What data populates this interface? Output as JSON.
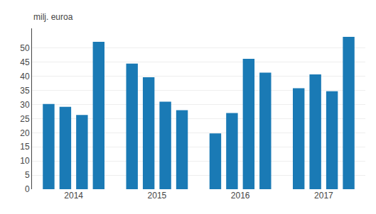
{
  "chart_data": {
    "type": "bar",
    "ylabel": "milj. euroa",
    "categories": [
      "2014",
      "2015",
      "2016",
      "2017"
    ],
    "series": [
      {
        "color": "#1a7ab5",
        "values": [
          30.2,
          44.5,
          19.8,
          35.8
        ]
      },
      {
        "color": "#1a7ab5",
        "values": [
          29.2,
          39.7,
          27.0,
          40.7
        ]
      },
      {
        "color": "#1a7ab5",
        "values": [
          26.3,
          31.0,
          46.2,
          34.7
        ]
      },
      {
        "color": "#1a7ab5",
        "values": [
          52.2,
          28.0,
          41.3,
          54.0
        ]
      }
    ],
    "ylim": [
      0,
      57
    ],
    "yticks": [
      0,
      5,
      10,
      15,
      20,
      25,
      30,
      35,
      40,
      45,
      50
    ],
    "grid": true
  }
}
